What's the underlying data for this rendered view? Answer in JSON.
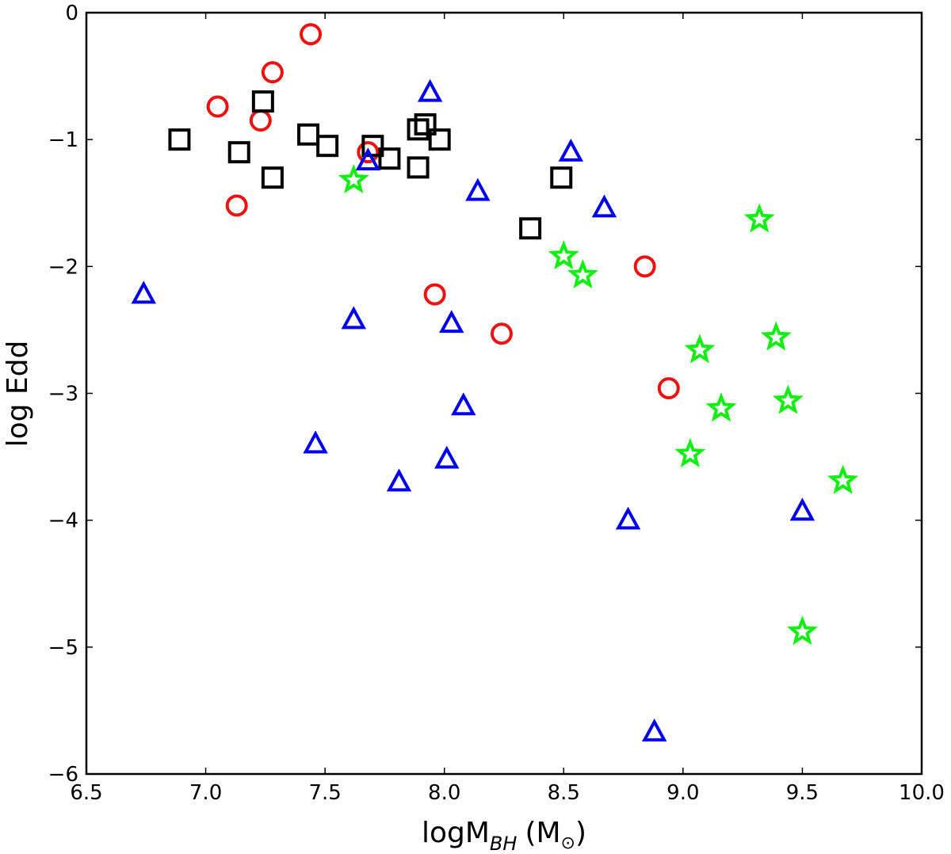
{
  "chart_data": {
    "type": "scatter",
    "title": "",
    "xlabel": "logM_BH (M_sun)",
    "xlabel_parts": {
      "main": "logM",
      "subscript": "BH",
      "open": "(M",
      "sun": "⊙",
      "close": ")"
    },
    "ylabel": "log Edd",
    "xlim": [
      6.5,
      10.0
    ],
    "ylim": [
      -6,
      0
    ],
    "x_ticks": [
      6.5,
      7.0,
      7.5,
      8.0,
      8.5,
      9.0,
      9.5,
      10.0
    ],
    "x_tick_labels": [
      "6.5",
      "7.0",
      "7.5",
      "8.0",
      "8.5",
      "9.0",
      "9.5",
      "10.0"
    ],
    "y_ticks": [
      0,
      -1,
      -2,
      -3,
      -4,
      -5,
      -6
    ],
    "y_tick_labels": [
      "0",
      "−1",
      "−2",
      "−3",
      "−4",
      "−5",
      "−6"
    ],
    "grid": false,
    "series": [
      {
        "name": "circles",
        "marker": "circle",
        "color": "#ee1111",
        "points": [
          [
            7.44,
            -0.17
          ],
          [
            7.28,
            -0.47
          ],
          [
            7.05,
            -0.74
          ],
          [
            7.23,
            -0.85
          ],
          [
            7.13,
            -1.52
          ],
          [
            7.68,
            -1.1
          ],
          [
            7.96,
            -2.22
          ],
          [
            8.24,
            -2.53
          ],
          [
            8.84,
            -2.0
          ],
          [
            8.94,
            -2.96
          ]
        ]
      },
      {
        "name": "squares",
        "marker": "square",
        "color": "#000000",
        "points": [
          [
            6.89,
            -1.0
          ],
          [
            7.24,
            -0.7
          ],
          [
            7.14,
            -1.1
          ],
          [
            7.28,
            -1.3
          ],
          [
            7.43,
            -0.96
          ],
          [
            7.51,
            -1.05
          ],
          [
            7.7,
            -1.05
          ],
          [
            7.77,
            -1.15
          ],
          [
            7.89,
            -0.92
          ],
          [
            7.92,
            -0.88
          ],
          [
            7.98,
            -1.0
          ],
          [
            7.89,
            -1.22
          ],
          [
            8.49,
            -1.3
          ],
          [
            8.36,
            -1.7
          ]
        ]
      },
      {
        "name": "triangles",
        "marker": "triangle",
        "color": "#0000ee",
        "points": [
          [
            6.74,
            -2.22
          ],
          [
            7.94,
            -0.63
          ],
          [
            7.68,
            -1.17
          ],
          [
            8.53,
            -1.1
          ],
          [
            8.14,
            -1.41
          ],
          [
            8.67,
            -1.54
          ],
          [
            7.62,
            -2.42
          ],
          [
            8.03,
            -2.45
          ],
          [
            8.08,
            -3.1
          ],
          [
            7.46,
            -3.4
          ],
          [
            8.01,
            -3.52
          ],
          [
            7.81,
            -3.7
          ],
          [
            8.77,
            -4.0
          ],
          [
            9.5,
            -3.93
          ],
          [
            8.88,
            -5.67
          ]
        ]
      },
      {
        "name": "stars",
        "marker": "star",
        "color": "#11ee11",
        "points": [
          [
            7.62,
            -1.32
          ],
          [
            8.5,
            -1.92
          ],
          [
            8.58,
            -2.07
          ],
          [
            9.32,
            -1.63
          ],
          [
            9.07,
            -2.66
          ],
          [
            9.39,
            -2.56
          ],
          [
            9.16,
            -3.12
          ],
          [
            9.44,
            -3.06
          ],
          [
            9.03,
            -3.48
          ],
          [
            9.67,
            -3.69
          ],
          [
            9.5,
            -4.88
          ]
        ]
      }
    ]
  }
}
